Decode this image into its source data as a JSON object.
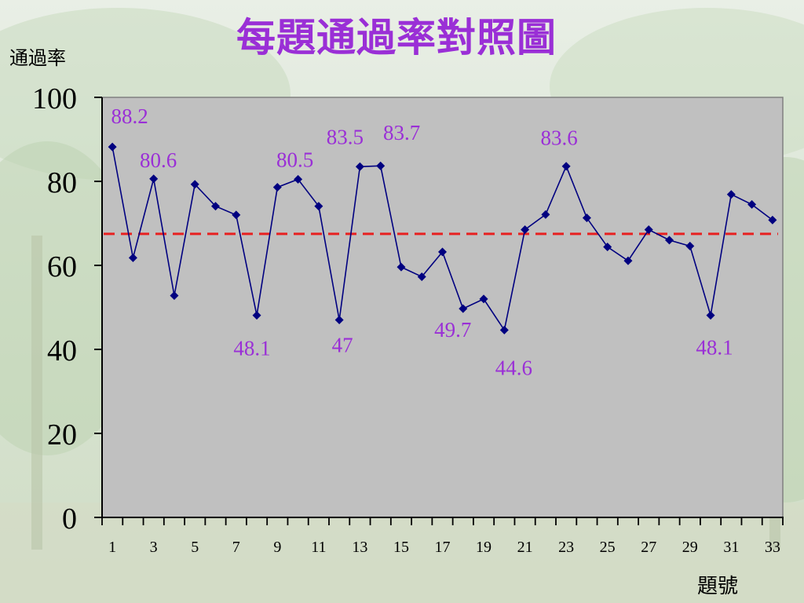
{
  "slide": {
    "title": "每題通過率對照圖",
    "ylabel": "通過率",
    "xlabel": "題號"
  },
  "chart_data": {
    "type": "line",
    "title": "每題通過率對照圖",
    "xlabel": "題號",
    "ylabel": "通過率",
    "x": [
      1,
      2,
      3,
      4,
      5,
      6,
      7,
      8,
      9,
      10,
      11,
      12,
      13,
      14,
      15,
      16,
      17,
      18,
      19,
      20,
      21,
      22,
      23,
      24,
      25,
      26,
      27,
      28,
      29,
      30,
      31,
      32,
      33
    ],
    "series": [
      {
        "values": [
          88.2,
          61.8,
          80.6,
          52.8,
          79.3,
          74.1,
          72.0,
          48.1,
          78.6,
          80.5,
          74.1,
          47,
          83.5,
          83.7,
          59.6,
          57.3,
          63.2,
          49.7,
          52.0,
          44.6,
          68.5,
          72.1,
          83.6,
          71.3,
          64.4,
          61.1,
          68.5,
          66.0,
          64.6,
          48.1,
          76.9,
          74.5,
          70.8
        ],
        "color": "#000080",
        "labeled_points": [
          {
            "x": 1,
            "text": "88.2"
          },
          {
            "x": 3,
            "text": "80.6"
          },
          {
            "x": 8,
            "text": "48.1"
          },
          {
            "x": 10,
            "text": "80.5"
          },
          {
            "x": 12,
            "text": "47"
          },
          {
            "x": 13,
            "text": "83.5"
          },
          {
            "x": 14,
            "text": "83.7"
          },
          {
            "x": 18,
            "text": "49.7"
          },
          {
            "x": 20,
            "text": "44.6"
          },
          {
            "x": 23,
            "text": "83.6"
          },
          {
            "x": 30,
            "text": "48.1"
          }
        ]
      }
    ],
    "reference_line": {
      "value": 67.5,
      "color": "#e82020",
      "style": "dashed"
    },
    "ylim": [
      0,
      100
    ],
    "yticks": [
      0,
      20,
      40,
      60,
      80,
      100
    ],
    "xtick_labels": [
      1,
      3,
      5,
      7,
      9,
      11,
      13,
      15,
      17,
      19,
      21,
      23,
      25,
      27,
      29,
      31,
      33
    ],
    "grid": false,
    "plot_background": "#c0c0c0",
    "label_color": "#9a2fd6"
  }
}
